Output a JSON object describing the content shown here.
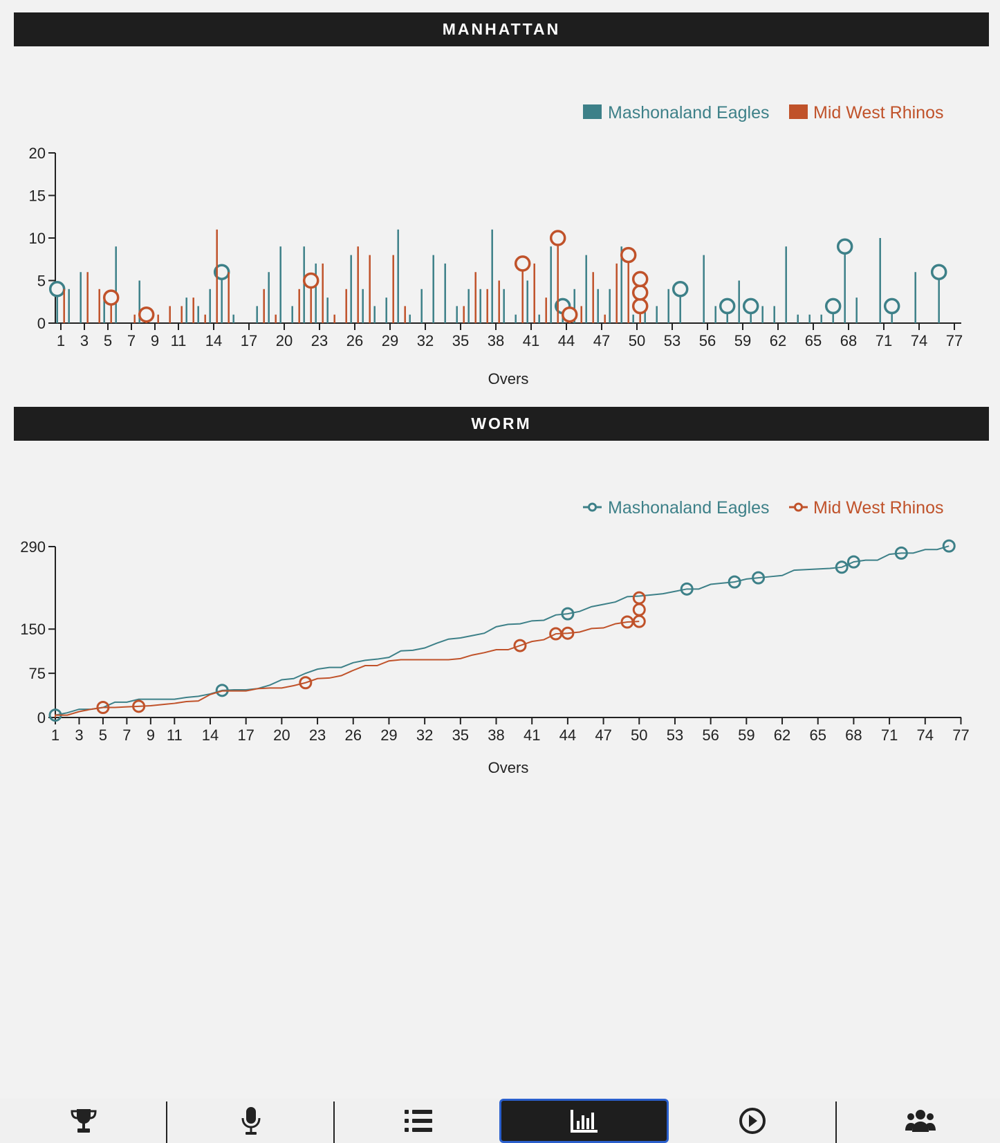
{
  "sections": {
    "manhattan_title": "MANHATTAN",
    "worm_title": "WORM"
  },
  "colors": {
    "team1": "#3d8088",
    "team2": "#c0522a",
    "header_bg": "#1e1e1e",
    "active_tab_border": "#2a5fcc"
  },
  "chart_data": [
    {
      "type": "bar",
      "title": "",
      "xlabel": "Overs",
      "ylabel": "",
      "ylim": [
        0,
        20
      ],
      "yticks": [
        "0",
        "5",
        "10",
        "15",
        "20"
      ],
      "xticks": [
        "1",
        "3",
        "5",
        "7",
        "9",
        "11",
        "14",
        "17",
        "20",
        "23",
        "26",
        "29",
        "32",
        "35",
        "38",
        "41",
        "44",
        "47",
        "50",
        "53",
        "56",
        "59",
        "62",
        "65",
        "68",
        "71",
        "74",
        "77"
      ],
      "legend_position": "top-right",
      "series": [
        {
          "name": "Mashonaland Eagles",
          "color": "#3d8088",
          "runs": [
            4,
            4,
            6,
            0,
            3,
            9,
            0,
            5,
            0,
            0,
            0,
            3,
            2,
            4,
            6,
            1,
            0,
            2,
            6,
            9,
            2,
            9,
            7,
            3,
            0,
            8,
            4,
            2,
            3,
            11,
            1,
            4,
            8,
            7,
            2,
            4,
            4,
            11,
            4,
            1,
            5,
            1,
            9,
            2,
            4,
            8,
            4,
            4,
            9,
            1,
            2,
            2,
            4,
            4,
            0,
            8,
            2,
            2,
            5,
            2,
            2,
            2,
            9,
            1,
            1,
            1,
            2,
            9,
            3,
            0,
            10,
            2,
            0,
            6,
            0,
            6
          ],
          "wickets": {
            "1": 1,
            "15": 1,
            "44": 1,
            "54": 1,
            "58": 1,
            "60": 1,
            "67": 1,
            "68": 1,
            "72": 1,
            "76": 1
          }
        },
        {
          "name": "Mid West Rhinos",
          "color": "#c0522a",
          "runs": [
            4,
            0,
            6,
            4,
            3,
            0,
            1,
            1,
            1,
            2,
            2,
            3,
            1,
            11,
            6,
            0,
            0,
            4,
            1,
            0,
            4,
            5,
            7,
            1,
            4,
            9,
            8,
            0,
            8,
            2,
            0,
            0,
            0,
            0,
            2,
            6,
            4,
            5,
            0,
            7,
            7,
            3,
            10,
            1,
            2,
            6,
            1,
            7,
            8,
            2
          ],
          "wickets": {
            "5": 1,
            "8": 1,
            "22": 1,
            "40": 1,
            "43": 1,
            "44": 1,
            "49": 1,
            "50": 3
          }
        }
      ]
    },
    {
      "type": "line",
      "title": "",
      "xlabel": "Overs",
      "ylabel": "",
      "ylim": [
        0,
        290
      ],
      "yticks": [
        "0",
        "75",
        "150",
        "290"
      ],
      "xticks": [
        "1",
        "3",
        "5",
        "7",
        "9",
        "11",
        "14",
        "17",
        "20",
        "23",
        "26",
        "29",
        "32",
        "35",
        "38",
        "41",
        "44",
        "47",
        "50",
        "53",
        "56",
        "59",
        "62",
        "65",
        "68",
        "71",
        "74",
        "77"
      ],
      "legend_position": "top-right",
      "series": [
        {
          "name": "Mashonaland Eagles",
          "color": "#3d8088",
          "values": [
            4,
            8,
            14,
            14,
            17,
            26,
            26,
            31,
            31,
            31,
            31,
            34,
            36,
            40,
            46,
            47,
            47,
            49,
            55,
            64,
            66,
            75,
            82,
            85,
            85,
            93,
            97,
            99,
            102,
            113,
            114,
            118,
            126,
            133,
            135,
            139,
            143,
            154,
            158,
            159,
            164,
            165,
            174,
            176,
            180,
            188,
            192,
            196,
            205,
            206,
            208,
            210,
            214,
            218,
            218,
            226,
            228,
            230,
            235,
            237,
            239,
            241,
            250,
            251,
            252,
            253,
            255,
            264,
            267,
            267,
            277,
            279,
            279,
            285,
            285,
            291
          ],
          "wickets": {
            "1": 1,
            "15": 1,
            "44": 1,
            "54": 1,
            "58": 1,
            "60": 1,
            "67": 1,
            "68": 1,
            "72": 1,
            "76": 1
          }
        },
        {
          "name": "Mid West Rhinos",
          "color": "#c0522a",
          "values": [
            4,
            4,
            10,
            14,
            17,
            17,
            18,
            19,
            20,
            22,
            24,
            27,
            28,
            39,
            45,
            45,
            45,
            49,
            50,
            50,
            54,
            59,
            66,
            67,
            71,
            80,
            88,
            88,
            96,
            98,
            98,
            98,
            98,
            98,
            100,
            106,
            110,
            115,
            115,
            122,
            129,
            132,
            142,
            143,
            145,
            151,
            152,
            159,
            162,
            163
          ],
          "wickets": {
            "5": 1,
            "8": 1,
            "22": 1,
            "40": 1,
            "43": 1,
            "44": 1,
            "49": 1,
            "50": 3
          }
        }
      ]
    }
  ],
  "nav": {
    "items": [
      {
        "icon": "trophy-icon"
      },
      {
        "icon": "microphone-icon"
      },
      {
        "icon": "list-icon"
      },
      {
        "icon": "bar-chart-icon",
        "active": true
      },
      {
        "icon": "play-circle-icon"
      },
      {
        "icon": "users-icon"
      }
    ]
  }
}
